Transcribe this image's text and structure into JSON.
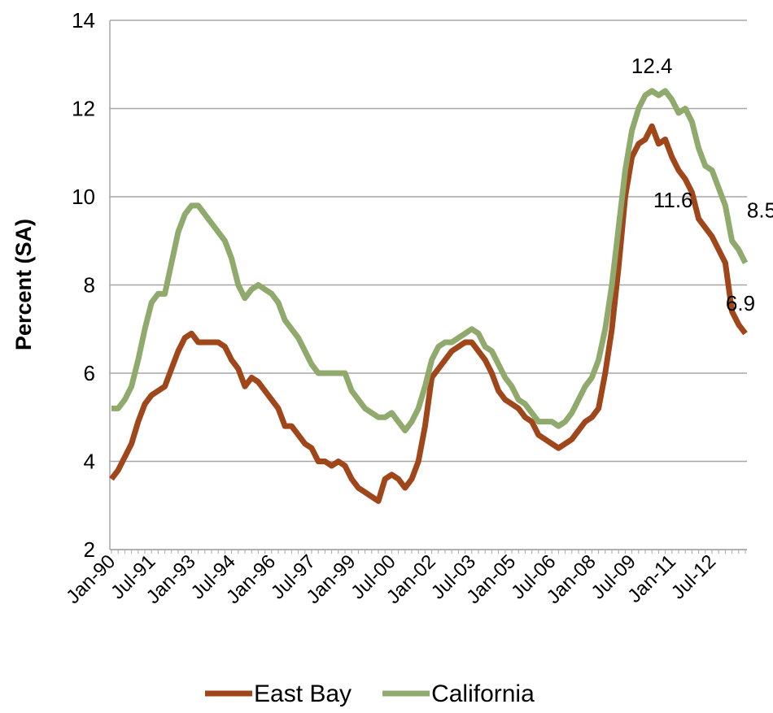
{
  "chart_data": {
    "type": "line",
    "y_label": "Percent (SA)",
    "ylim": [
      2,
      14
    ],
    "yticks": [
      2,
      4,
      6,
      8,
      10,
      12,
      14
    ],
    "grid": true,
    "legend": "bottom",
    "categories": [
      "Jan-90",
      null,
      null,
      null,
      null,
      null,
      "Jul-91",
      null,
      null,
      null,
      null,
      null,
      "Jan-93",
      null,
      null,
      null,
      null,
      null,
      "Jul-94",
      null,
      null,
      null,
      null,
      null,
      "Jan-96",
      null,
      null,
      null,
      null,
      null,
      "Jul-97",
      null,
      null,
      null,
      null,
      null,
      "Jan-99",
      null,
      null,
      null,
      null,
      null,
      "Jul-00",
      null,
      null,
      null,
      null,
      null,
      "Jan-02",
      null,
      null,
      null,
      null,
      null,
      "Jul-03",
      null,
      null,
      null,
      null,
      null,
      "Jan-05",
      null,
      null,
      null,
      null,
      null,
      "Jul-06",
      null,
      null,
      null,
      null,
      null,
      "Jan-08",
      null,
      null,
      null,
      null,
      null,
      "Jul-09",
      null,
      null,
      null,
      null,
      null,
      "Jan-11",
      null,
      null,
      null,
      null,
      null,
      "Jul-12",
      null,
      null,
      null,
      null,
      null
    ],
    "series": [
      {
        "name": "East Bay",
        "color": "#a0461b",
        "values": [
          3.6,
          3.8,
          4.1,
          4.4,
          4.9,
          5.3,
          5.5,
          5.6,
          5.7,
          6.1,
          6.5,
          6.8,
          6.9,
          6.7,
          6.7,
          6.7,
          6.7,
          6.6,
          6.3,
          6.1,
          5.7,
          5.9,
          5.8,
          5.6,
          5.4,
          5.2,
          4.8,
          4.8,
          4.6,
          4.4,
          4.3,
          4.0,
          4.0,
          3.9,
          4.0,
          3.9,
          3.6,
          3.4,
          3.3,
          3.2,
          3.1,
          3.6,
          3.7,
          3.6,
          3.4,
          3.6,
          4.0,
          4.8,
          5.9,
          6.1,
          6.3,
          6.5,
          6.6,
          6.7,
          6.7,
          6.5,
          6.3,
          6.0,
          5.6,
          5.4,
          5.3,
          5.2,
          5.0,
          4.9,
          4.6,
          4.5,
          4.4,
          4.3,
          4.4,
          4.5,
          4.7,
          4.9,
          5.0,
          5.2,
          6.0,
          7.0,
          8.4,
          10.0,
          10.9,
          11.2,
          11.3,
          11.6,
          11.2,
          11.3,
          10.9,
          10.6,
          10.4,
          10.1,
          9.5,
          9.3,
          9.1,
          8.8,
          8.5,
          7.4,
          7.1,
          6.9
        ],
        "value_labels": [
          null,
          null,
          null,
          null,
          null,
          null,
          null,
          null,
          null,
          null,
          null,
          null,
          null,
          null,
          null,
          null,
          null,
          null,
          null,
          null,
          null,
          null,
          null,
          null,
          null,
          null,
          null,
          null,
          null,
          null,
          null,
          null,
          null,
          null,
          null,
          null,
          null,
          null,
          null,
          null,
          null,
          null,
          null,
          null,
          null,
          null,
          null,
          null,
          null,
          null,
          null,
          null,
          null,
          null,
          null,
          null,
          null,
          null,
          null,
          null,
          null,
          null,
          null,
          null,
          null,
          null,
          null,
          null,
          null,
          null,
          null,
          null,
          null,
          null,
          null,
          null,
          null,
          null,
          null,
          null,
          null,
          "11.6",
          null,
          null,
          null,
          null,
          null,
          null,
          null,
          null,
          null,
          null,
          null,
          null,
          null,
          "6.9"
        ]
      },
      {
        "name": "California",
        "color": "#8faa6c",
        "values": [
          5.2,
          5.2,
          5.4,
          5.7,
          6.3,
          7.0,
          7.6,
          7.8,
          7.8,
          8.5,
          9.2,
          9.6,
          9.8,
          9.8,
          9.6,
          9.4,
          9.2,
          9.0,
          8.6,
          8.0,
          7.7,
          7.9,
          8.0,
          7.9,
          7.8,
          7.6,
          7.2,
          7.0,
          6.8,
          6.5,
          6.2,
          6.0,
          6.0,
          6.0,
          6.0,
          6.0,
          5.6,
          5.4,
          5.2,
          5.1,
          5.0,
          5.0,
          5.1,
          4.9,
          4.7,
          4.9,
          5.2,
          5.7,
          6.3,
          6.6,
          6.7,
          6.7,
          6.8,
          6.9,
          7.0,
          6.9,
          6.6,
          6.5,
          6.2,
          5.9,
          5.7,
          5.4,
          5.3,
          5.1,
          4.9,
          4.9,
          4.9,
          4.8,
          4.9,
          5.1,
          5.4,
          5.7,
          5.9,
          6.3,
          7.0,
          8.0,
          9.3,
          10.6,
          11.5,
          12.0,
          12.3,
          12.4,
          12.3,
          12.4,
          12.2,
          11.9,
          12.0,
          11.7,
          11.1,
          10.7,
          10.6,
          10.2,
          9.8,
          9.0,
          8.8,
          8.5
        ],
        "value_labels": [
          null,
          null,
          null,
          null,
          null,
          null,
          null,
          null,
          null,
          null,
          null,
          null,
          null,
          null,
          null,
          null,
          null,
          null,
          null,
          null,
          null,
          null,
          null,
          null,
          null,
          null,
          null,
          null,
          null,
          null,
          null,
          null,
          null,
          null,
          null,
          null,
          null,
          null,
          null,
          null,
          null,
          null,
          null,
          null,
          null,
          null,
          null,
          null,
          null,
          null,
          null,
          null,
          null,
          null,
          null,
          null,
          null,
          null,
          null,
          null,
          null,
          null,
          null,
          null,
          null,
          null,
          null,
          null,
          null,
          null,
          null,
          null,
          null,
          null,
          null,
          null,
          null,
          null,
          null,
          null,
          null,
          "12.4",
          null,
          null,
          null,
          null,
          null,
          null,
          null,
          null,
          null,
          null,
          null,
          null,
          null,
          "8.5"
        ]
      }
    ]
  }
}
